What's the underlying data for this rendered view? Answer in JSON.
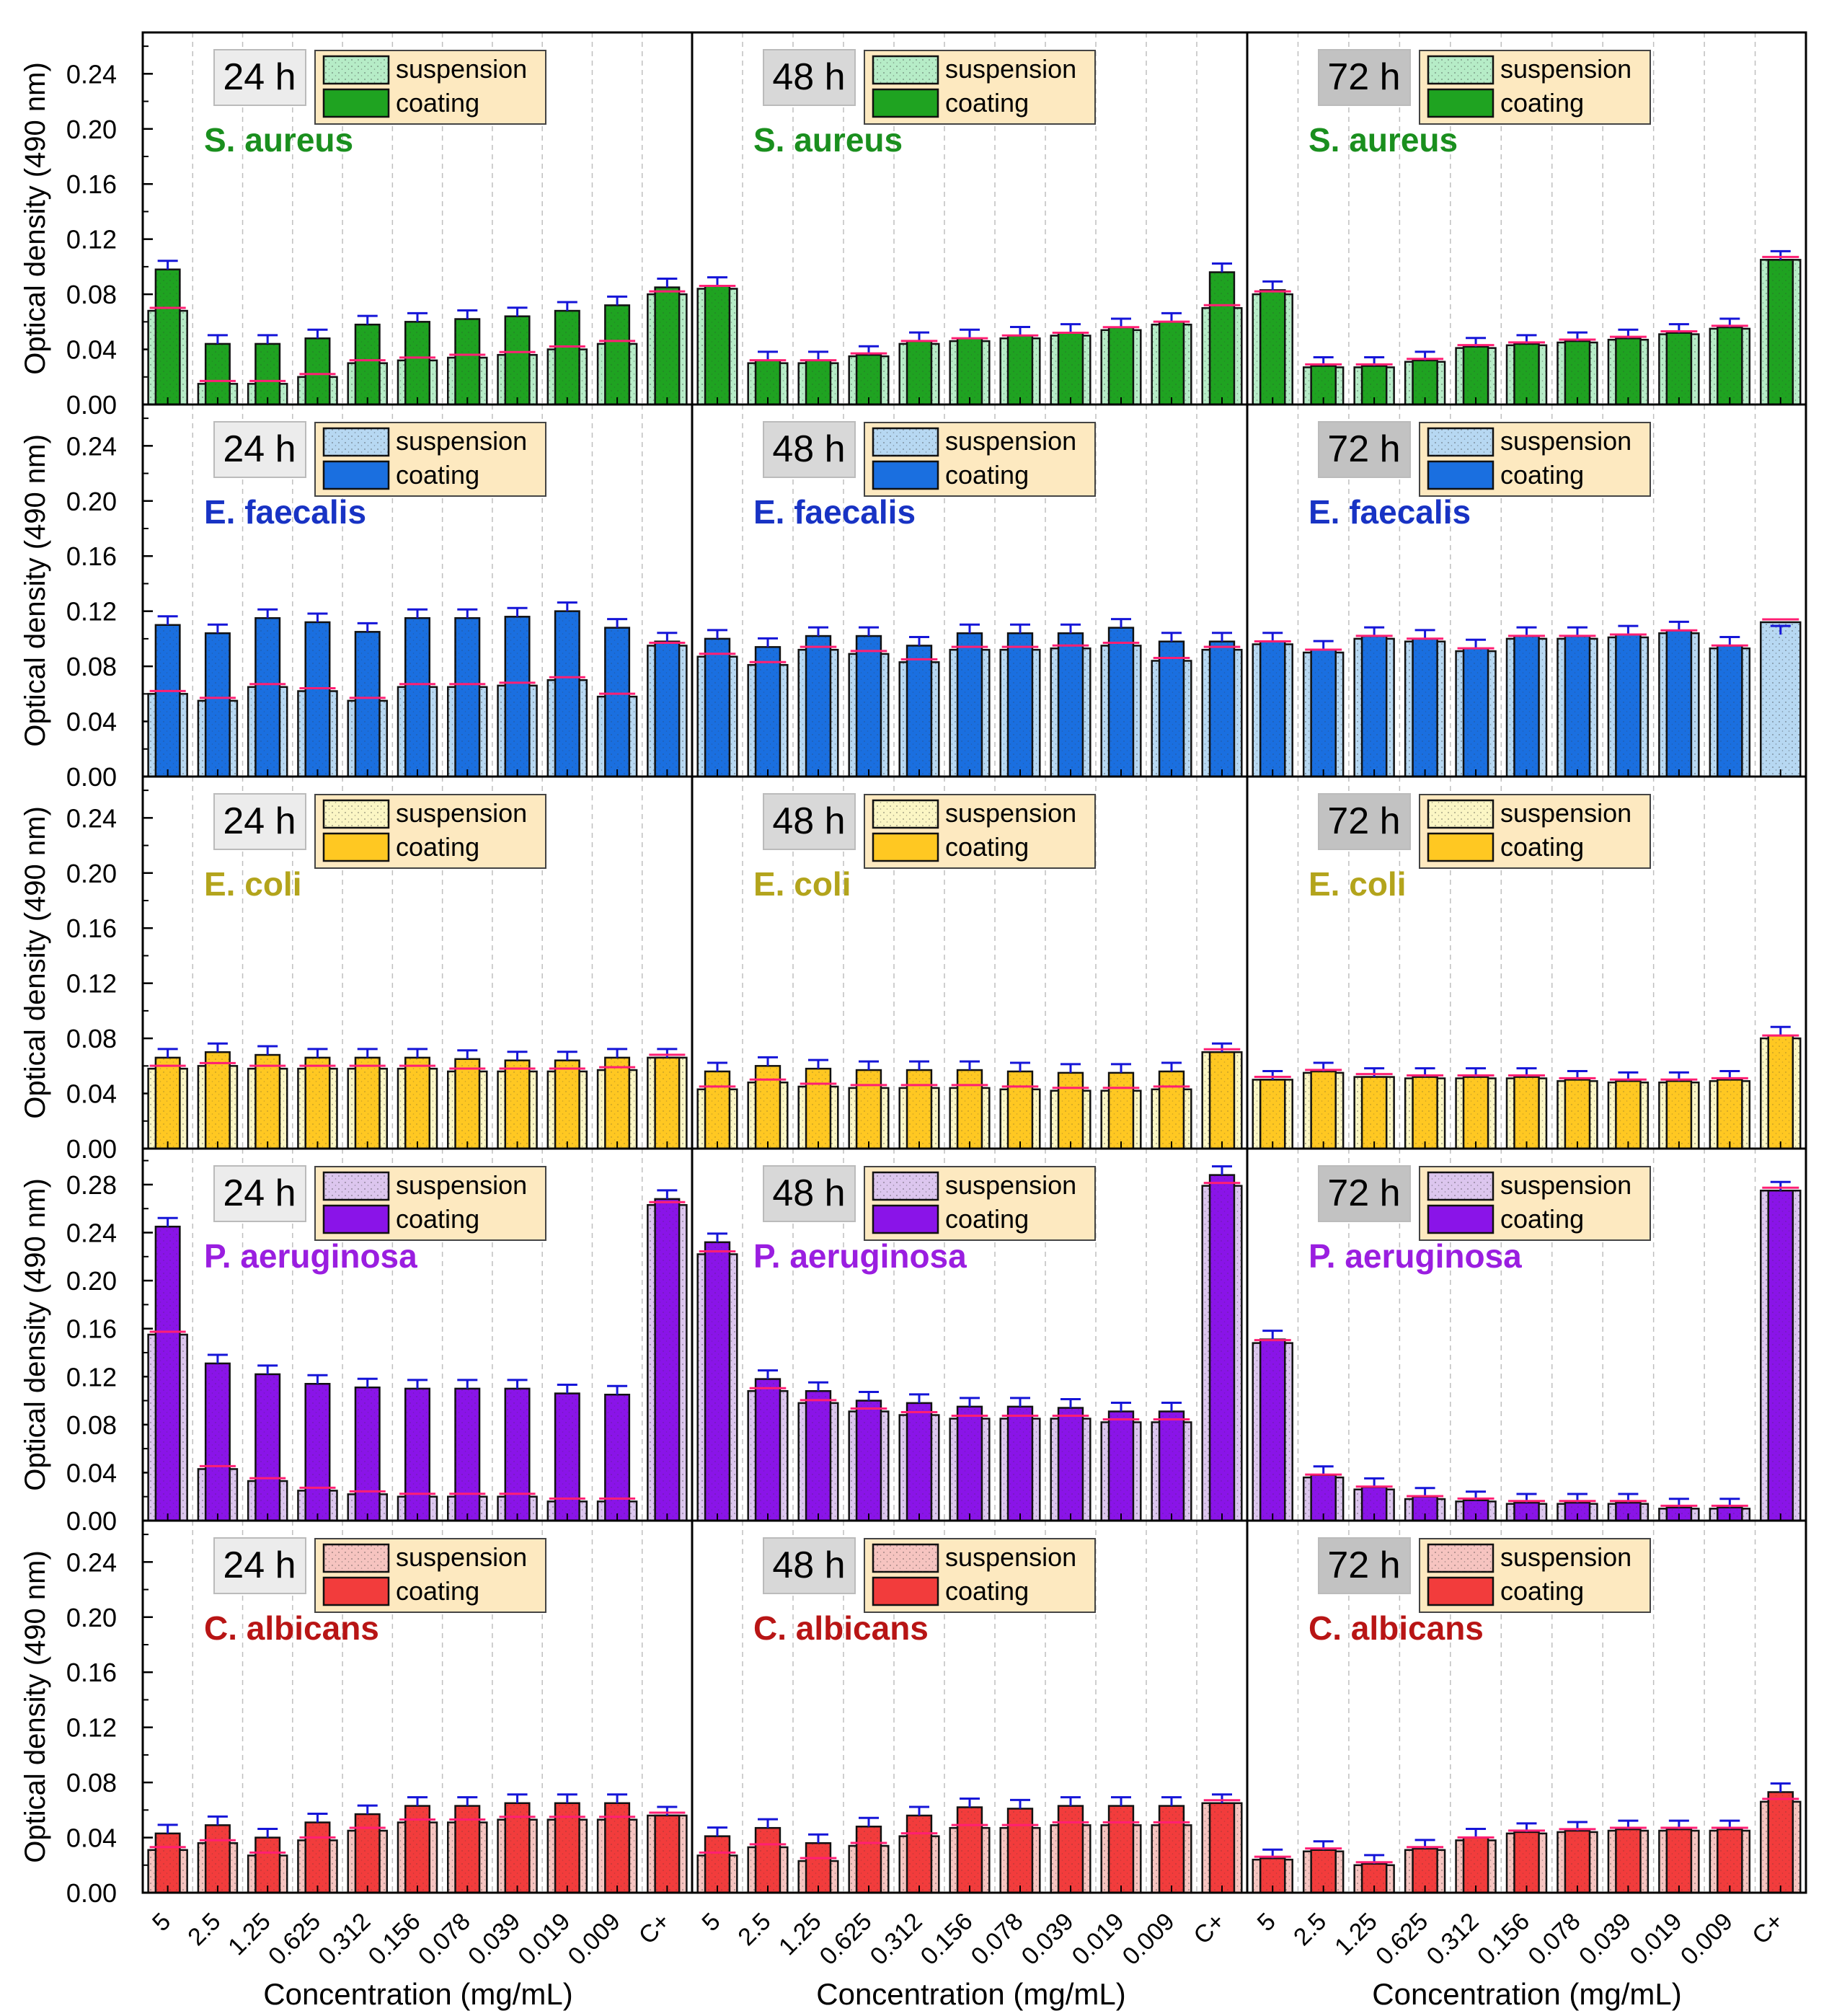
{
  "figure": {
    "ylabel": "Optical density (490 nm)",
    "xlabel": "Concentration (mg/mL)",
    "legend_suspension": "suspension",
    "legend_coating": "coating"
  },
  "colors": {
    "S. aureus": {
      "coat": "#1fa321",
      "susp": "#b6ecc7",
      "label": "#1a8f1e"
    },
    "E. faecalis": {
      "coat": "#1a6fe0",
      "susp": "#b7d8f2",
      "label": "#1833c4"
    },
    "E. coli": {
      "coat": "#ffc822",
      "susp": "#fbf6c4",
      "label": "#b3a41c"
    },
    "P. aeruginosa": {
      "coat": "#8a14e8",
      "susp": "#dcc6ee",
      "label": "#9a1ee0"
    },
    "C. albicans": {
      "coat": "#f23c3c",
      "susp": "#f6c4c0",
      "label": "#b81515"
    },
    "error_coating": "#1515d8",
    "error_suspension": "#ff1f73",
    "time_box_24": "#ececec",
    "time_box_48": "#d8d8d8",
    "time_box_72": "#c2c2c2",
    "legend_bg": "#fde9c0"
  },
  "chart_data": {
    "type": "bar",
    "categories": [
      "5",
      "2.5",
      "1.25",
      "0.625",
      "0.312",
      "0.156",
      "0.078",
      "0.039",
      "0.019",
      "0.009",
      "C+"
    ],
    "times": [
      "24 h",
      "48 h",
      "72 h"
    ],
    "rows": [
      {
        "organism": "S. aureus",
        "yticks": [
          "0.00",
          "0.04",
          "0.08",
          "0.12",
          "0.16",
          "0.20",
          "0.24"
        ],
        "ylim": [
          0,
          0.27
        ],
        "panels": [
          {
            "time": "24 h",
            "coating": [
              0.098,
              0.044,
              0.044,
              0.048,
              0.058,
              0.06,
              0.062,
              0.064,
              0.068,
              0.072,
              0.085
            ],
            "suspension": [
              0.068,
              0.015,
              0.015,
              0.02,
              0.03,
              0.032,
              0.034,
              0.036,
              0.04,
              0.044,
              0.08
            ]
          },
          {
            "time": "48 h",
            "coating": [
              0.086,
              0.032,
              0.032,
              0.036,
              0.046,
              0.048,
              0.05,
              0.052,
              0.056,
              0.06,
              0.096
            ],
            "suspension": [
              0.084,
              0.03,
              0.03,
              0.035,
              0.044,
              0.046,
              0.048,
              0.05,
              0.054,
              0.058,
              0.07
            ]
          },
          {
            "time": "72 h",
            "coating": [
              0.083,
              0.028,
              0.028,
              0.032,
              0.042,
              0.044,
              0.046,
              0.048,
              0.052,
              0.056,
              0.105
            ],
            "suspension": [
              0.08,
              0.027,
              0.027,
              0.031,
              0.041,
              0.043,
              0.045,
              0.047,
              0.051,
              0.055,
              0.105
            ]
          }
        ]
      },
      {
        "organism": "E. faecalis",
        "yticks": [
          "0.00",
          "0.04",
          "0.08",
          "0.12",
          "0.16",
          "0.20",
          "0.24"
        ],
        "ylim": [
          0,
          0.27
        ],
        "panels": [
          {
            "time": "24 h",
            "coating": [
              0.11,
              0.104,
              0.115,
              0.112,
              0.105,
              0.115,
              0.115,
              0.116,
              0.12,
              0.108,
              0.098
            ],
            "suspension": [
              0.06,
              0.055,
              0.065,
              0.062,
              0.055,
              0.065,
              0.065,
              0.066,
              0.07,
              0.058,
              0.095
            ]
          },
          {
            "time": "48 h",
            "coating": [
              0.1,
              0.094,
              0.102,
              0.102,
              0.095,
              0.104,
              0.104,
              0.104,
              0.108,
              0.098,
              0.098
            ],
            "suspension": [
              0.087,
              0.081,
              0.092,
              0.089,
              0.083,
              0.092,
              0.092,
              0.093,
              0.095,
              0.084,
              0.092
            ]
          },
          {
            "time": "72 h",
            "coating": [
              0.098,
              0.092,
              0.102,
              0.1,
              0.093,
              0.102,
              0.102,
              0.103,
              0.106,
              0.095,
              0.103
            ],
            "suspension": [
              0.096,
              0.09,
              0.1,
              0.098,
              0.091,
              0.1,
              0.1,
              0.101,
              0.104,
              0.093,
              0.112
            ]
          }
        ]
      },
      {
        "organism": "E. coli",
        "yticks": [
          "0.00",
          "0.04",
          "0.08",
          "0.12",
          "0.16",
          "0.20",
          "0.24"
        ],
        "ylim": [
          0,
          0.27
        ],
        "panels": [
          {
            "time": "24 h",
            "coating": [
              0.066,
              0.07,
              0.068,
              0.066,
              0.066,
              0.066,
              0.065,
              0.064,
              0.064,
              0.066,
              0.066
            ],
            "suspension": [
              0.058,
              0.06,
              0.058,
              0.058,
              0.058,
              0.058,
              0.056,
              0.056,
              0.056,
              0.057,
              0.066
            ]
          },
          {
            "time": "48 h",
            "coating": [
              0.056,
              0.06,
              0.058,
              0.057,
              0.057,
              0.057,
              0.056,
              0.055,
              0.055,
              0.056,
              0.07
            ],
            "suspension": [
              0.043,
              0.048,
              0.045,
              0.044,
              0.044,
              0.044,
              0.043,
              0.042,
              0.042,
              0.043,
              0.07
            ]
          },
          {
            "time": "72 h",
            "coating": [
              0.05,
              0.056,
              0.052,
              0.052,
              0.052,
              0.052,
              0.05,
              0.049,
              0.049,
              0.05,
              0.082
            ],
            "suspension": [
              0.05,
              0.055,
              0.052,
              0.051,
              0.051,
              0.051,
              0.049,
              0.048,
              0.048,
              0.049,
              0.08
            ]
          }
        ]
      },
      {
        "organism": "P. aeruginosa",
        "yticks": [
          "0.00",
          "0.04",
          "0.08",
          "0.12",
          "0.16",
          "0.20",
          "0.24",
          "0.28"
        ],
        "ylim": [
          0,
          0.31
        ],
        "panels": [
          {
            "time": "24 h",
            "coating": [
              0.245,
              0.131,
              0.122,
              0.114,
              0.111,
              0.11,
              0.11,
              0.11,
              0.106,
              0.105,
              0.268
            ],
            "suspension": [
              0.155,
              0.043,
              0.033,
              0.025,
              0.022,
              0.02,
              0.02,
              0.02,
              0.016,
              0.016,
              0.263
            ]
          },
          {
            "time": "48 h",
            "coating": [
              0.232,
              0.118,
              0.108,
              0.1,
              0.098,
              0.095,
              0.095,
              0.094,
              0.091,
              0.091,
              0.288
            ],
            "suspension": [
              0.222,
              0.108,
              0.098,
              0.091,
              0.088,
              0.085,
              0.085,
              0.085,
              0.082,
              0.082,
              0.279
            ]
          },
          {
            "time": "72 h",
            "coating": [
              0.151,
              0.038,
              0.028,
              0.02,
              0.017,
              0.015,
              0.015,
              0.015,
              0.011,
              0.011,
              0.275
            ],
            "suspension": [
              0.148,
              0.036,
              0.026,
              0.018,
              0.016,
              0.014,
              0.014,
              0.014,
              0.01,
              0.01,
              0.275
            ]
          }
        ]
      },
      {
        "organism": "C. albicans",
        "yticks": [
          "0.00",
          "0.04",
          "0.08",
          "0.12",
          "0.16",
          "0.20",
          "0.24"
        ],
        "ylim": [
          0,
          0.27
        ],
        "panels": [
          {
            "time": "24 h",
            "coating": [
              0.043,
              0.049,
              0.04,
              0.051,
              0.057,
              0.063,
              0.063,
              0.065,
              0.065,
              0.065,
              0.056
            ],
            "suspension": [
              0.031,
              0.036,
              0.027,
              0.038,
              0.045,
              0.051,
              0.051,
              0.053,
              0.053,
              0.053,
              0.056
            ]
          },
          {
            "time": "48 h",
            "coating": [
              0.041,
              0.047,
              0.036,
              0.048,
              0.056,
              0.062,
              0.061,
              0.063,
              0.063,
              0.063,
              0.065
            ],
            "suspension": [
              0.027,
              0.033,
              0.023,
              0.034,
              0.041,
              0.047,
              0.047,
              0.049,
              0.049,
              0.049,
              0.065
            ]
          },
          {
            "time": "72 h",
            "coating": [
              0.025,
              0.031,
              0.021,
              0.032,
              0.04,
              0.044,
              0.045,
              0.046,
              0.046,
              0.046,
              0.073
            ],
            "suspension": [
              0.024,
              0.03,
              0.02,
              0.031,
              0.038,
              0.043,
              0.044,
              0.045,
              0.045,
              0.045,
              0.066
            ]
          }
        ]
      }
    ]
  }
}
